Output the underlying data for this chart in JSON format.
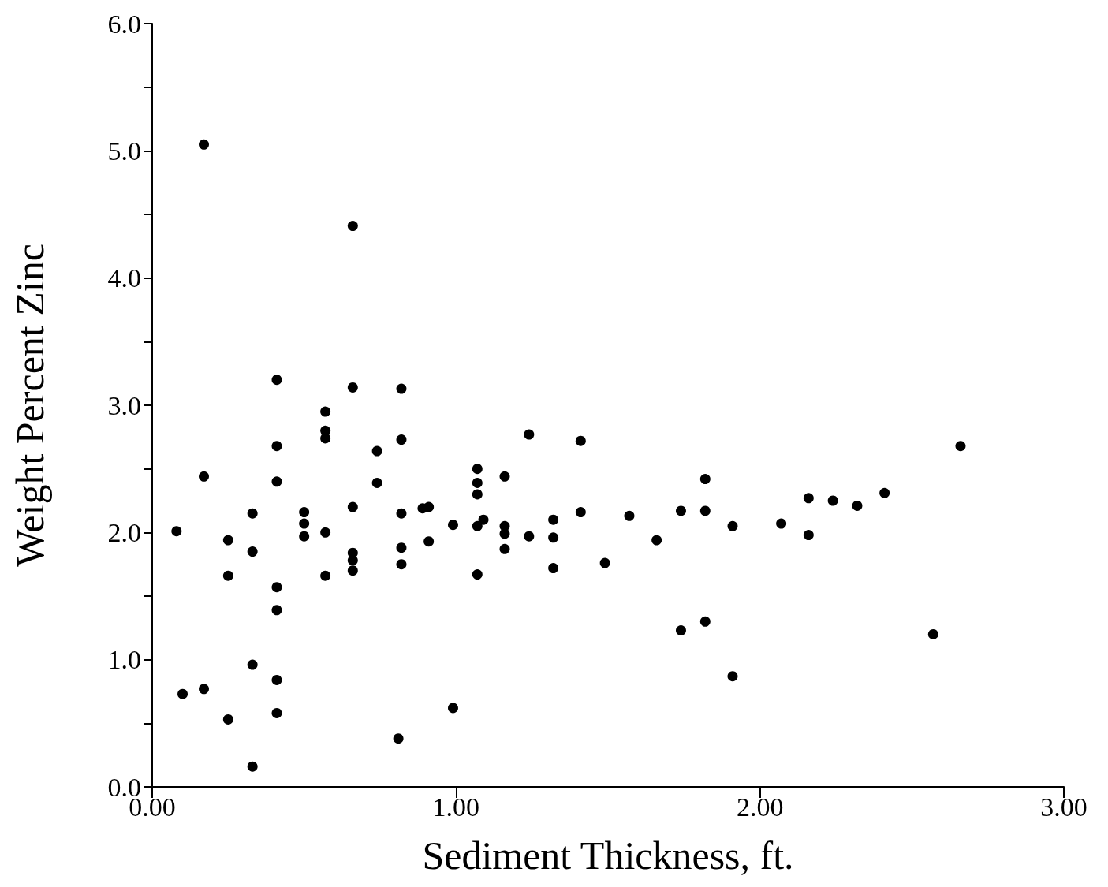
{
  "chart_data": {
    "type": "scatter",
    "xlabel": "Sediment Thickness, ft.",
    "ylabel": "Weight Percent Zinc",
    "xlim": [
      0,
      3
    ],
    "ylim": [
      0,
      6
    ],
    "xticks": [
      {
        "value": 0,
        "label": "0.00"
      },
      {
        "value": 1,
        "label": "1.00"
      },
      {
        "value": 2,
        "label": "2.00"
      },
      {
        "value": 3,
        "label": "3.00"
      }
    ],
    "yticks": [
      {
        "value": 0,
        "label": "0.0"
      },
      {
        "value": 0.5,
        "label": null
      },
      {
        "value": 1,
        "label": "1.0"
      },
      {
        "value": 1.5,
        "label": null
      },
      {
        "value": 2,
        "label": "2.0"
      },
      {
        "value": 2.5,
        "label": null
      },
      {
        "value": 3,
        "label": "3.0"
      },
      {
        "value": 3.5,
        "label": null
      },
      {
        "value": 4,
        "label": "4.0"
      },
      {
        "value": 4.5,
        "label": null
      },
      {
        "value": 5,
        "label": "5.0"
      },
      {
        "value": 5.5,
        "label": null
      },
      {
        "value": 6,
        "label": "6.0"
      }
    ],
    "grid": false,
    "marker": "circle",
    "color": "#000000",
    "x": [
      0.08,
      0.1,
      0.17,
      0.17,
      0.17,
      0.25,
      0.25,
      0.25,
      0.33,
      0.33,
      0.33,
      0.33,
      0.41,
      0.41,
      0.41,
      0.41,
      0.41,
      0.41,
      0.41,
      0.5,
      0.5,
      0.5,
      0.57,
      0.57,
      0.57,
      0.57,
      0.57,
      0.66,
      0.66,
      0.66,
      0.66,
      0.66,
      0.66,
      0.74,
      0.74,
      0.82,
      0.82,
      0.82,
      0.82,
      0.82,
      0.81,
      0.89,
      0.91,
      0.91,
      0.99,
      0.99,
      1.07,
      1.07,
      1.07,
      1.07,
      1.07,
      1.09,
      1.16,
      1.16,
      1.16,
      1.16,
      1.24,
      1.24,
      1.32,
      1.32,
      1.32,
      1.41,
      1.41,
      1.49,
      1.57,
      1.66,
      1.74,
      1.74,
      1.82,
      1.82,
      1.82,
      1.91,
      1.91,
      2.07,
      2.16,
      2.16,
      2.24,
      2.32,
      2.41,
      2.57,
      2.66
    ],
    "values": [
      2.01,
      0.73,
      5.05,
      2.44,
      0.77,
      1.94,
      1.66,
      0.53,
      2.15,
      1.85,
      0.96,
      0.16,
      3.2,
      2.68,
      2.4,
      1.57,
      1.39,
      0.84,
      0.58,
      2.16,
      2.07,
      1.97,
      2.95,
      2.8,
      2.74,
      2.0,
      1.66,
      4.41,
      3.14,
      2.2,
      1.84,
      1.78,
      1.7,
      2.64,
      2.39,
      3.13,
      2.73,
      2.15,
      1.88,
      1.75,
      0.38,
      2.19,
      2.2,
      1.93,
      2.06,
      0.62,
      2.5,
      2.39,
      2.3,
      2.05,
      1.67,
      2.1,
      2.44,
      2.05,
      1.99,
      1.87,
      2.77,
      1.97,
      2.1,
      1.96,
      1.72,
      2.72,
      2.16,
      1.76,
      2.13,
      1.94,
      2.17,
      1.23,
      2.42,
      2.17,
      1.3,
      2.05,
      0.87,
      2.07,
      2.27,
      1.98,
      2.25,
      2.21,
      2.31,
      1.2,
      2.68
    ]
  }
}
